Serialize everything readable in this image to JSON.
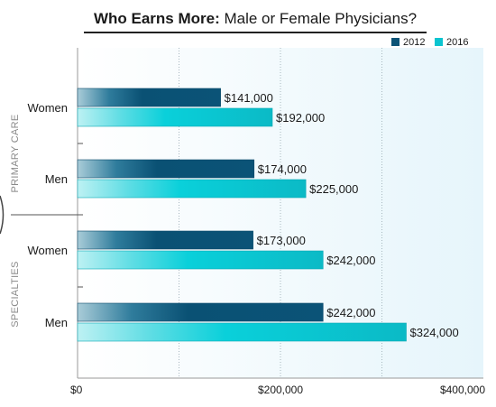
{
  "chart_data": {
    "type": "bar",
    "orientation": "horizontal",
    "title_bold": "Who Earns More:",
    "title_rest": " Male or Female Physicians?",
    "xlim": [
      0,
      400000
    ],
    "ticks": [
      {
        "value": 0,
        "label": "$0"
      },
      {
        "value": 200000,
        "label": "$200,000"
      },
      {
        "value": 400000,
        "label": "$400,000"
      }
    ],
    "gridlines": [
      100000,
      200000,
      300000
    ],
    "legend_position": "top-right",
    "series": [
      {
        "name": "2012",
        "color": "#0b5377"
      },
      {
        "name": "2016",
        "color": "#0bc4d0"
      }
    ],
    "groups": [
      {
        "name": "PRIMARY CARE",
        "categories": [
          {
            "label": "Women",
            "values": [
              141000,
              192000
            ],
            "value_labels": [
              "$141,000",
              "$192,000"
            ]
          },
          {
            "label": "Men",
            "values": [
              174000,
              225000
            ],
            "value_labels": [
              "$174,000",
              "$225,000"
            ]
          }
        ]
      },
      {
        "name": "SPECIALTIES",
        "categories": [
          {
            "label": "Women",
            "values": [
              173000,
              242000
            ],
            "value_labels": [
              "$173,000",
              "$242,000"
            ]
          },
          {
            "label": "Men",
            "values": [
              242000,
              324000
            ],
            "value_labels": [
              "$242,000",
              "$324,000"
            ]
          }
        ]
      }
    ]
  }
}
